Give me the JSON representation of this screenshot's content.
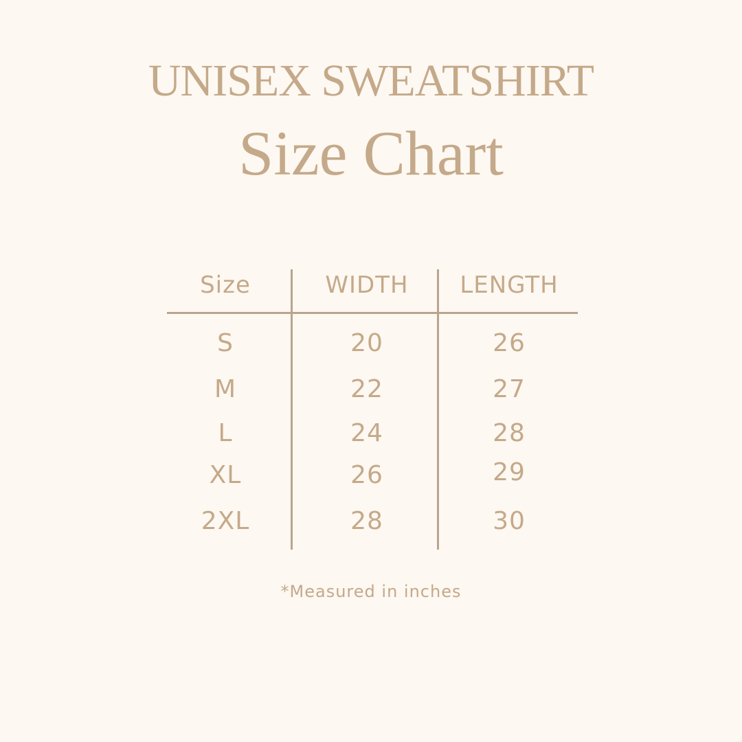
{
  "title": "UNISEX SWEATSHIRT",
  "subtitle": "Size Chart",
  "table": {
    "headers": [
      "Size",
      "WIDTH",
      "LENGTH"
    ],
    "rows": [
      [
        "S",
        "20",
        "26"
      ],
      [
        "M",
        "22",
        "27"
      ],
      [
        "L",
        "24",
        "28"
      ],
      [
        "XL",
        "26",
        "29"
      ],
      [
        "2XL",
        "28",
        "30"
      ]
    ]
  },
  "footnote": "*Measured in inches",
  "colors": {
    "background": "#fdf8f1",
    "text": "#c4a98a",
    "lines": "#b9a48e"
  }
}
